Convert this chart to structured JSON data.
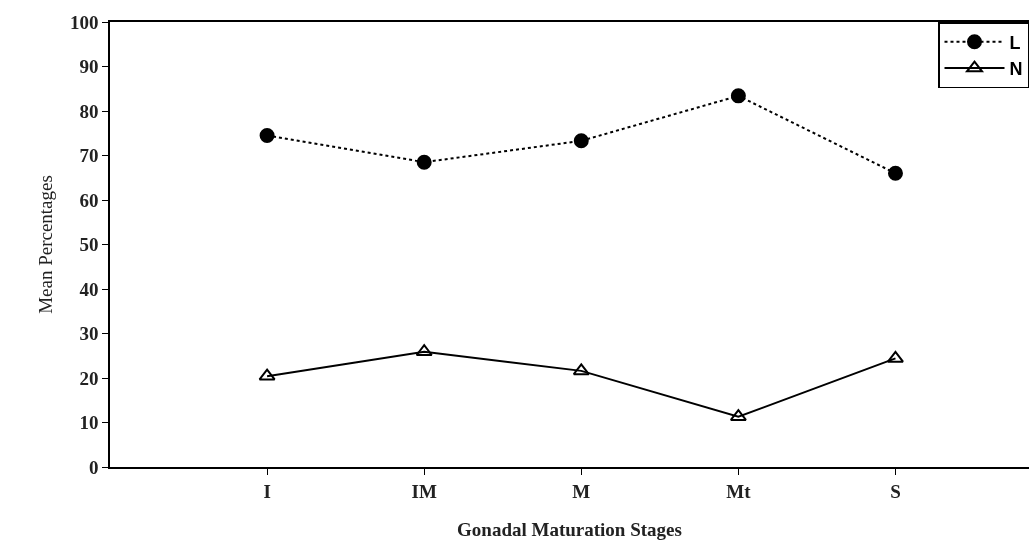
{
  "chart_data": {
    "type": "line",
    "xlabel": "Gonadal Maturation Stages",
    "ylabel": "Mean Percentages",
    "categories": [
      "I",
      "IM",
      "M",
      "Mt",
      "S"
    ],
    "series": [
      {
        "name": "L",
        "color": "#000000",
        "marker": "circle",
        "line_style": "dotted",
        "values": [
          74.5,
          68.5,
          73.3,
          83.4,
          66
        ]
      },
      {
        "name": "N",
        "color": "#000000",
        "marker": "triangle",
        "line_style": "solid",
        "values": [
          20.4,
          25.9,
          21.6,
          11.3,
          24.4
        ]
      }
    ],
    "ylim": [
      0,
      100
    ],
    "yticks": [
      0,
      10,
      20,
      30,
      40,
      50,
      60,
      70,
      80,
      90,
      100
    ],
    "grid": false,
    "legend": "top right"
  }
}
